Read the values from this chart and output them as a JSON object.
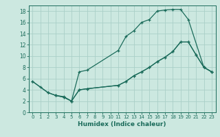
{
  "xlabel": "Humidex (Indice chaleur)",
  "bg_color": "#cce8e0",
  "grid_color": "#aacfc8",
  "line_color": "#1a6b5a",
  "xlim": [
    -0.5,
    23.5
  ],
  "ylim": [
    0,
    19
  ],
  "xticks": [
    0,
    1,
    2,
    3,
    4,
    5,
    6,
    7,
    8,
    9,
    10,
    11,
    12,
    13,
    14,
    15,
    16,
    17,
    18,
    19,
    20,
    21,
    22,
    23
  ],
  "yticks": [
    0,
    2,
    4,
    6,
    8,
    10,
    12,
    14,
    16,
    18
  ],
  "curve1_x": [
    0,
    1,
    2,
    3,
    4,
    5,
    6,
    7,
    11,
    12,
    13,
    14,
    15,
    16,
    17,
    18,
    19,
    20,
    22,
    23
  ],
  "curve1_y": [
    5.5,
    4.5,
    3.5,
    3.0,
    2.8,
    2.0,
    7.2,
    7.5,
    11.0,
    13.5,
    14.5,
    16.0,
    16.5,
    18.0,
    18.2,
    18.3,
    18.3,
    16.5,
    8.0,
    7.2
  ],
  "curve2_x": [
    0,
    2,
    3,
    4,
    5,
    6,
    7,
    11,
    12,
    13,
    14,
    15,
    16,
    17,
    18,
    19,
    20,
    21,
    22,
    23
  ],
  "curve2_y": [
    5.5,
    3.5,
    3.0,
    2.7,
    2.0,
    4.0,
    4.2,
    4.8,
    5.5,
    6.5,
    7.2,
    8.0,
    9.0,
    9.8,
    10.8,
    12.5,
    12.5,
    10.2,
    8.0,
    7.2
  ],
  "curve3_x": [
    3,
    4,
    5,
    6,
    7,
    11,
    12,
    13,
    14,
    15,
    16,
    17,
    18,
    19,
    20,
    21,
    22,
    23
  ],
  "curve3_y": [
    3.0,
    2.7,
    2.0,
    4.0,
    4.2,
    4.8,
    5.5,
    6.5,
    7.2,
    8.0,
    9.0,
    9.8,
    10.8,
    12.5,
    12.5,
    10.2,
    8.0,
    7.2
  ]
}
